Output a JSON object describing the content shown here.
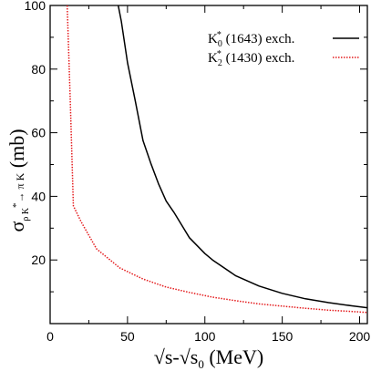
{
  "chart_data": {
    "type": "line",
    "title": "",
    "xlabel_parts": {
      "sqrt": "√",
      "s1": "s-",
      "sqrt2": "√",
      "s2": "s",
      "sub": "0",
      "tail": " (MeV)"
    },
    "ylabel_parts": {
      "sigma": "σ",
      "sub": "ρ K",
      "sup": "*",
      "arrow": "→ π K",
      "tail": " (mb)"
    },
    "xlim": [
      0,
      205
    ],
    "ylim": [
      0,
      100
    ],
    "x_ticks": [
      0,
      50,
      100,
      150,
      200
    ],
    "y_ticks": [
      20,
      40,
      60,
      80,
      100
    ],
    "legend_position": "top-right",
    "series": [
      {
        "name": "K0*(1643) exch.",
        "legend_parts": {
          "base": "K",
          "sub": "0",
          "sup": "*",
          "tail": " (1643) exch."
        },
        "color": "#000000",
        "dash": "solid",
        "x": [
          44,
          46,
          50,
          55,
          60,
          65,
          70,
          75,
          80,
          90,
          100,
          105,
          120,
          135,
          150,
          165,
          180,
          195,
          205
        ],
        "y": [
          100,
          95,
          82,
          70,
          57.5,
          50.5,
          44,
          38.5,
          35,
          27,
          22,
          20,
          15,
          11.8,
          9.5,
          7.8,
          6.6,
          5.6,
          5.0
        ]
      },
      {
        "name": "K2*(1430) exch.",
        "legend_parts": {
          "base": "K",
          "sub": "2",
          "sup": "*",
          "tail": " (1430) exch."
        },
        "color": "#e41a1c",
        "dash": "dotted",
        "x": [
          11,
          13,
          15,
          20,
          30,
          45,
          60,
          75,
          90,
          105,
          120,
          135,
          150,
          165,
          180,
          195,
          205
        ],
        "y": [
          100,
          70,
          37,
          32,
          23.5,
          17.5,
          14,
          11.5,
          9.8,
          8.3,
          7.2,
          6.2,
          5.5,
          4.8,
          4.2,
          3.8,
          3.5
        ]
      }
    ]
  }
}
